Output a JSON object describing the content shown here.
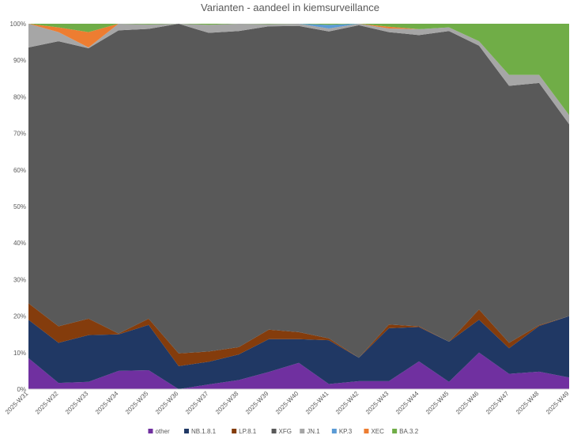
{
  "chart_data": {
    "type": "area",
    "stacked": true,
    "normalized": true,
    "title": "Varianten - aandeel in kiemsurveillance",
    "xlabel": "",
    "ylabel": "",
    "ylim": [
      0,
      1
    ],
    "y_ticks": [
      "0%",
      "10%",
      "20%",
      "30%",
      "40%",
      "50%",
      "60%",
      "70%",
      "80%",
      "90%",
      "100%"
    ],
    "grid": false,
    "legend_position": "bottom",
    "categories": [
      "2025-W31",
      "2025-W32",
      "2025-W33",
      "2025-W34",
      "2025-W35",
      "2025-W36",
      "2025-W37",
      "2025-W38",
      "2025-W39",
      "2025-W40",
      "2025-W41",
      "2025-W42",
      "2025-W43",
      "2025-W44",
      "2025-W45",
      "2025-W46",
      "2025-W47",
      "2025-W48",
      "2025-W49"
    ],
    "series": [
      {
        "name": "other",
        "color": "#7030a0",
        "values": [
          0.085,
          0.017,
          0.02,
          0.05,
          0.052,
          0.0,
          0.013,
          0.025,
          0.047,
          0.072,
          0.014,
          0.022,
          0.022,
          0.076,
          0.02,
          0.1,
          0.042,
          0.048,
          0.032
        ]
      },
      {
        "name": "NB.1.8.1",
        "color": "#203864",
        "values": [
          0.105,
          0.11,
          0.128,
          0.1,
          0.124,
          0.063,
          0.062,
          0.07,
          0.09,
          0.065,
          0.12,
          0.064,
          0.145,
          0.094,
          0.11,
          0.09,
          0.07,
          0.125,
          0.168
        ]
      },
      {
        "name": "LP.8.1",
        "color": "#843c0c",
        "values": [
          0.045,
          0.045,
          0.045,
          0.002,
          0.017,
          0.035,
          0.028,
          0.02,
          0.026,
          0.019,
          0.005,
          0.0,
          0.01,
          0.002,
          0.0,
          0.028,
          0.015,
          0.002,
          0.0
        ]
      },
      {
        "name": "XFG",
        "color": "#595959",
        "values": [
          0.7,
          0.78,
          0.74,
          0.83,
          0.793,
          0.902,
          0.872,
          0.865,
          0.83,
          0.838,
          0.84,
          0.91,
          0.8,
          0.797,
          0.85,
          0.722,
          0.703,
          0.663,
          0.525
        ]
      },
      {
        "name": "JN.1",
        "color": "#a6a6a6",
        "values": [
          0.065,
          0.025,
          0.002,
          0.018,
          0.012,
          0.0,
          0.022,
          0.02,
          0.006,
          0.006,
          0.008,
          0.004,
          0.01,
          0.016,
          0.01,
          0.012,
          0.03,
          0.022,
          0.025
        ]
      },
      {
        "name": "KP.3",
        "color": "#5b9bd5",
        "values": [
          0.0,
          0.0,
          0.0,
          0.0,
          0.0,
          0.0,
          0.0,
          0.0,
          0.0,
          0.0,
          0.01,
          0.0,
          0.0,
          0.0,
          0.0,
          0.0,
          0.0,
          0.0,
          0.0
        ]
      },
      {
        "name": "XEC",
        "color": "#ed7d31",
        "values": [
          0.0,
          0.013,
          0.042,
          0.0,
          0.0,
          0.0,
          0.0,
          0.0,
          0.0,
          0.0,
          0.0,
          0.0,
          0.005,
          0.0,
          0.0,
          0.0,
          0.0,
          0.0,
          0.0
        ]
      },
      {
        "name": "BA.3.2",
        "color": "#70ad47",
        "values": [
          0.0,
          0.01,
          0.023,
          0.0,
          0.002,
          0.0,
          0.003,
          0.0,
          0.001,
          0.0,
          0.003,
          0.0,
          0.008,
          0.015,
          0.01,
          0.048,
          0.14,
          0.14,
          0.25
        ]
      }
    ]
  }
}
